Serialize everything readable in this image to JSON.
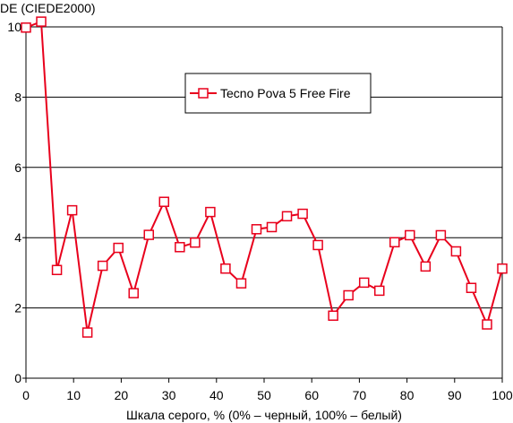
{
  "chart_data": {
    "type": "line",
    "title": "",
    "ylabel": "DE (CIEDE2000)",
    "xlabel": "Шкала серого, % (0% – черный, 100% – белый)",
    "xlim": [
      0,
      100
    ],
    "ylim": [
      0,
      10
    ],
    "xticks": [
      "0",
      "10",
      "20",
      "30",
      "40",
      "50",
      "60",
      "70",
      "80",
      "90",
      "100"
    ],
    "yticks": [
      "0",
      "2",
      "4",
      "6",
      "8",
      "10"
    ],
    "grid": "horizontal",
    "legend": "top-center",
    "colors": {
      "series": "#e8001c",
      "grid": "#000000",
      "background": "#ffffff"
    },
    "series": [
      {
        "name": "Tecno Pova 5 Free Fire",
        "x": [
          0,
          3.2,
          6.5,
          9.7,
          12.9,
          16.1,
          19.4,
          22.6,
          25.8,
          29.0,
          32.3,
          35.5,
          38.7,
          41.9,
          45.2,
          48.4,
          51.6,
          54.8,
          58.1,
          61.3,
          64.5,
          67.7,
          71.0,
          74.2,
          77.4,
          80.6,
          83.9,
          87.1,
          90.3,
          93.5,
          96.8,
          100
        ],
        "values": [
          9.98,
          10.15,
          3.08,
          4.78,
          1.3,
          3.2,
          3.71,
          2.42,
          4.08,
          5.02,
          3.73,
          3.86,
          4.73,
          3.12,
          2.7,
          4.24,
          4.3,
          4.61,
          4.68,
          3.79,
          1.78,
          2.36,
          2.72,
          2.49,
          3.87,
          4.07,
          3.18,
          4.07,
          3.61,
          2.57,
          1.53,
          3.12
        ]
      }
    ]
  }
}
